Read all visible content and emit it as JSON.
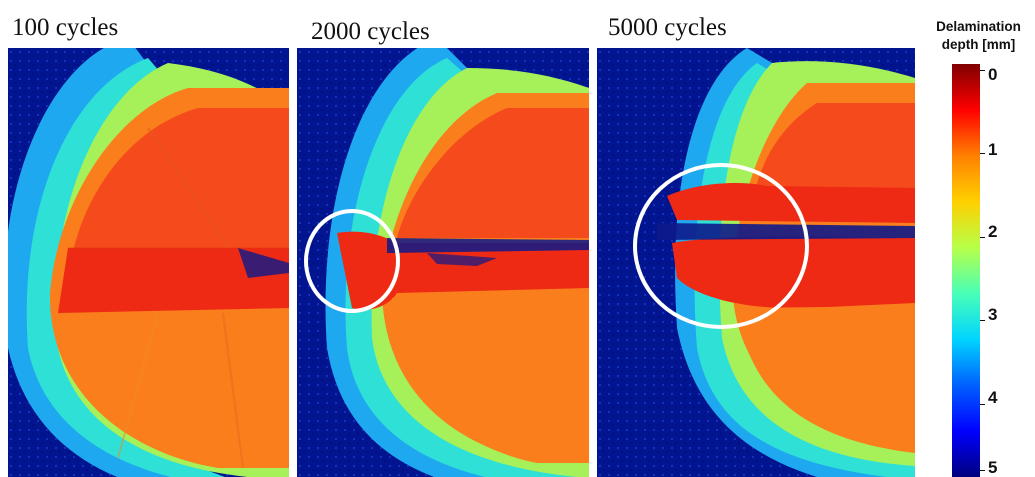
{
  "panels": [
    {
      "title": "100 cycles"
    },
    {
      "title": "2000 cycles"
    },
    {
      "title": "5000 cycles"
    }
  ],
  "colorbar": {
    "title_line1": "Delamination",
    "title_line2": "depth [mm]",
    "ticks": [
      "0",
      "1",
      "2",
      "3",
      "4",
      "5"
    ],
    "colors": [
      "#7f0000",
      "#ff0000",
      "#ff8000",
      "#ffd000",
      "#b7ff48",
      "#48ffb7",
      "#00d4ff",
      "#0060ff",
      "#0000ff",
      "#00007f"
    ]
  },
  "palette": {
    "background_blue": "#00158f",
    "lightblue": "#1ea8f0",
    "cyan": "#2fe0d6",
    "green": "#a6f05a",
    "orange": "#fa7e1c",
    "redorange": "#f54a1c",
    "red": "#ee2a14",
    "highlight_circle": "#ffffff"
  }
}
